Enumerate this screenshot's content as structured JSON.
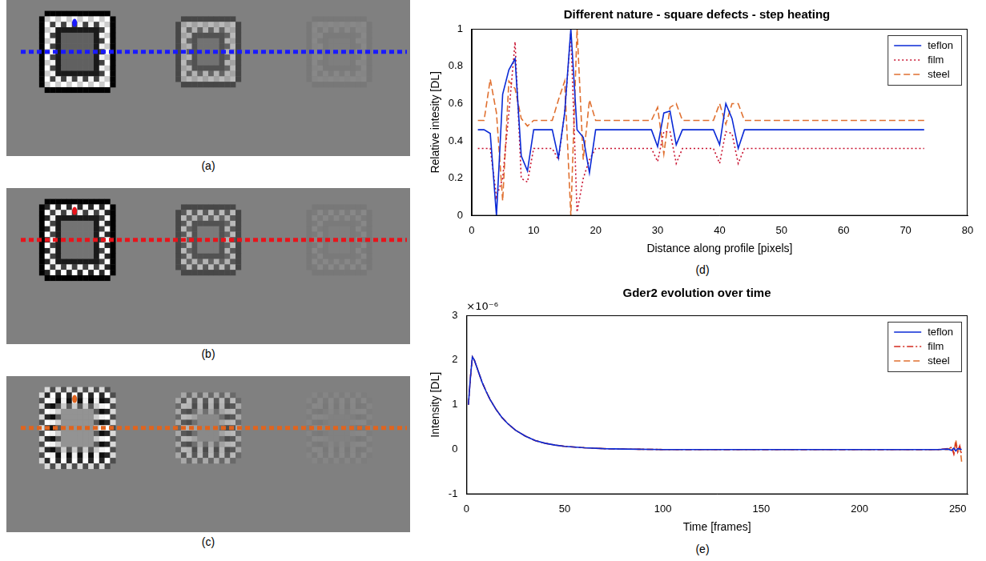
{
  "images": [
    {
      "label": "(a)",
      "color": "#1a1aff"
    },
    {
      "label": "(b)",
      "color": "#e8141b"
    },
    {
      "label": "(c)",
      "color": "#e0641e"
    }
  ],
  "chart_data": [
    {
      "type": "line",
      "title": "Different nature - square defects - step heating",
      "xlabel": "Distance along profile [pixels]",
      "ylabel": "Relative intesity [DL]",
      "caption": "(d)",
      "x": [
        1,
        2,
        3,
        4,
        5,
        6,
        7,
        8,
        9,
        10,
        11,
        12,
        13,
        14,
        15,
        16,
        17,
        18,
        19,
        20,
        21,
        22,
        23,
        24,
        25,
        26,
        27,
        28,
        29,
        30,
        31,
        32,
        33,
        34,
        35,
        36,
        37,
        38,
        39,
        40,
        41,
        42,
        43,
        44,
        45,
        46,
        47,
        48,
        49,
        50,
        51,
        52,
        53,
        54,
        55,
        56,
        57,
        58,
        59,
        60,
        61,
        62,
        63,
        64,
        65,
        66,
        67,
        68,
        69,
        70,
        71,
        72,
        73
      ],
      "series": [
        {
          "name": "teflon",
          "color": "#0a2ad6",
          "line_style": "solid",
          "values": [
            0.46,
            0.46,
            0.44,
            0.0,
            0.65,
            0.78,
            0.84,
            0.32,
            0.24,
            0.46,
            0.46,
            0.46,
            0.46,
            0.31,
            0.55,
            1.0,
            0.46,
            0.42,
            0.23,
            0.46,
            0.46,
            0.46,
            0.46,
            0.46,
            0.46,
            0.46,
            0.46,
            0.46,
            0.46,
            0.37,
            0.55,
            0.56,
            0.38,
            0.46,
            0.46,
            0.46,
            0.46,
            0.46,
            0.46,
            0.38,
            0.6,
            0.52,
            0.36,
            0.46,
            0.46,
            0.46,
            0.46,
            0.46,
            0.46,
            0.46,
            0.46,
            0.46,
            0.46,
            0.46,
            0.46,
            0.46,
            0.46,
            0.46,
            0.46,
            0.46,
            0.46,
            0.46,
            0.46,
            0.46,
            0.46,
            0.46,
            0.46,
            0.46,
            0.46,
            0.46,
            0.46,
            0.46,
            0.46
          ]
        },
        {
          "name": "film",
          "color": "#c8102e",
          "line_style": "dotted",
          "values": [
            0.36,
            0.36,
            0.36,
            0.1,
            0.2,
            0.55,
            0.93,
            0.2,
            0.18,
            0.36,
            0.36,
            0.36,
            0.36,
            0.3,
            0.55,
            0.98,
            0.02,
            0.2,
            0.3,
            0.36,
            0.36,
            0.36,
            0.36,
            0.36,
            0.36,
            0.36,
            0.36,
            0.36,
            0.36,
            0.29,
            0.45,
            0.45,
            0.28,
            0.36,
            0.36,
            0.36,
            0.36,
            0.36,
            0.36,
            0.28,
            0.45,
            0.44,
            0.28,
            0.36,
            0.36,
            0.36,
            0.36,
            0.36,
            0.36,
            0.36,
            0.36,
            0.36,
            0.36,
            0.36,
            0.36,
            0.36,
            0.36,
            0.36,
            0.36,
            0.36,
            0.36,
            0.36,
            0.36,
            0.36,
            0.36,
            0.36,
            0.36,
            0.36,
            0.36,
            0.36,
            0.36,
            0.36,
            0.36
          ]
        },
        {
          "name": "steel",
          "color": "#e07030",
          "line_style": "dashed",
          "values": [
            0.51,
            0.51,
            0.73,
            0.55,
            0.08,
            0.72,
            0.68,
            0.52,
            0.48,
            0.51,
            0.51,
            0.51,
            0.51,
            0.62,
            0.72,
            0.0,
            1.0,
            0.3,
            0.62,
            0.51,
            0.51,
            0.51,
            0.51,
            0.51,
            0.51,
            0.51,
            0.51,
            0.51,
            0.51,
            0.58,
            0.33,
            0.58,
            0.6,
            0.51,
            0.51,
            0.51,
            0.51,
            0.51,
            0.51,
            0.6,
            0.49,
            0.6,
            0.6,
            0.51,
            0.51,
            0.51,
            0.51,
            0.51,
            0.51,
            0.51,
            0.51,
            0.51,
            0.51,
            0.51,
            0.51,
            0.51,
            0.51,
            0.51,
            0.51,
            0.51,
            0.51,
            0.51,
            0.51,
            0.51,
            0.51,
            0.51,
            0.51,
            0.51,
            0.51,
            0.51,
            0.51,
            0.51,
            0.51
          ]
        }
      ],
      "xlim": [
        0,
        80
      ],
      "xticks": [
        0,
        10,
        20,
        30,
        40,
        50,
        60,
        70,
        80
      ],
      "ylim": [
        0,
        1
      ],
      "yticks": [
        0,
        0.2,
        0.4,
        0.6,
        0.8,
        1
      ],
      "legend": "upper right",
      "grid": false
    },
    {
      "type": "line",
      "title": "Gder2 evolution over time",
      "xlabel": "Time [frames]",
      "ylabel": "Intensity [DL]",
      "caption": "(e)",
      "annotations": [
        "×10⁻⁶"
      ],
      "x": [
        1,
        2,
        3,
        4,
        6,
        8,
        10,
        12,
        15,
        18,
        21,
        25,
        30,
        35,
        40,
        45,
        50,
        60,
        70,
        80,
        100,
        120,
        150,
        180,
        200,
        220,
        240,
        245,
        247,
        248,
        249,
        250,
        251,
        252
      ],
      "series": [
        {
          "name": "teflon",
          "color": "#0a2ad6",
          "line_style": "solid",
          "values": [
            1.0,
            1.6,
            2.07,
            2.0,
            1.75,
            1.5,
            1.3,
            1.12,
            0.9,
            0.72,
            0.58,
            0.43,
            0.3,
            0.2,
            0.14,
            0.1,
            0.07,
            0.04,
            0.02,
            0.01,
            0,
            0,
            0,
            0,
            0,
            0,
            0,
            0.01,
            -0.02,
            0.03,
            -0.03,
            0.02,
            0.01,
            0
          ]
        },
        {
          "name": "film",
          "color": "#d42a1f",
          "line_style": "dashdot",
          "values": [
            1.0,
            1.6,
            2.07,
            2.0,
            1.75,
            1.5,
            1.3,
            1.12,
            0.9,
            0.72,
            0.58,
            0.43,
            0.3,
            0.2,
            0.14,
            0.1,
            0.07,
            0.04,
            0.02,
            0.01,
            0,
            0,
            0,
            0,
            0,
            0,
            0,
            0.02,
            0.05,
            -0.1,
            0.12,
            -0.05,
            0.08,
            -0.12
          ]
        },
        {
          "name": "steel",
          "color": "#e07030",
          "line_style": "dashed",
          "values": [
            1.0,
            1.6,
            2.07,
            2.0,
            1.75,
            1.5,
            1.3,
            1.12,
            0.9,
            0.72,
            0.58,
            0.43,
            0.3,
            0.2,
            0.14,
            0.1,
            0.07,
            0.04,
            0.02,
            0.01,
            0,
            0,
            0,
            0,
            0,
            0,
            0,
            0,
            0.06,
            -0.08,
            0.22,
            -0.05,
            0.1,
            -0.28
          ]
        }
      ],
      "xlim": [
        0,
        255
      ],
      "xticks": [
        0,
        50,
        100,
        150,
        200,
        250
      ],
      "ylim": [
        -1,
        3
      ],
      "yticks": [
        -1,
        0,
        1,
        2,
        3
      ],
      "legend": "upper right",
      "grid": false
    }
  ]
}
